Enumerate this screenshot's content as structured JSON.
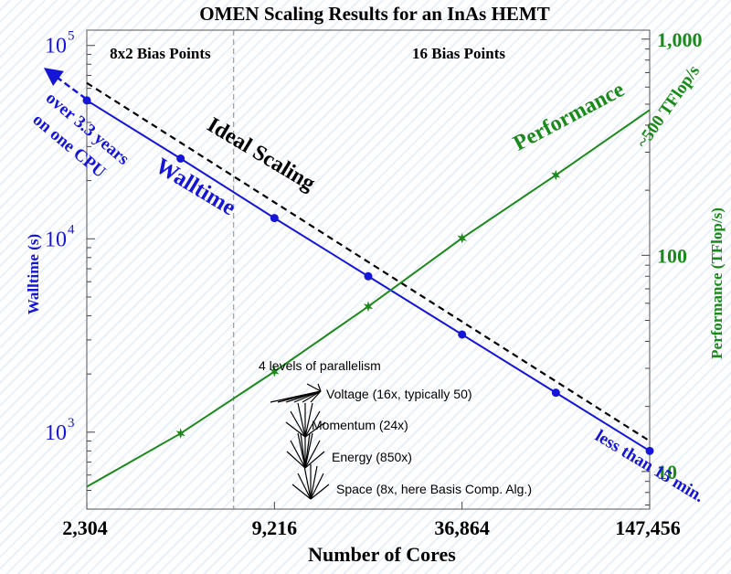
{
  "chart_data": {
    "type": "line",
    "title": "OMEN Scaling Results for an InAs HEMT",
    "xlabel": "Number of Cores",
    "ylabel_left": "Walltime (s)",
    "ylabel_right": "Performance (TFlop/s)",
    "x_scale": "log2",
    "xlim": [
      2304,
      147456
    ],
    "x_ticks": [
      {
        "value": 2304,
        "label": "2,304"
      },
      {
        "value": 9216,
        "label": "9,216"
      },
      {
        "value": 36864,
        "label": "36,864"
      },
      {
        "value": 147456,
        "label": "147,456"
      }
    ],
    "y_left_scale": "log10",
    "y_left_lim": [
      400,
      120000
    ],
    "y_left_ticks": [
      {
        "value": 1000,
        "base": "10",
        "exp": "3"
      },
      {
        "value": 10000,
        "base": "10",
        "exp": "4"
      },
      {
        "value": 100000,
        "base": "10",
        "exp": "5"
      }
    ],
    "y_right_scale": "log10",
    "y_right_lim": [
      6.7,
      1100
    ],
    "y_right_ticks": [
      {
        "value": 10,
        "label": "10"
      },
      {
        "value": 100,
        "label": "100"
      },
      {
        "value": 1000,
        "label": "1,000"
      }
    ],
    "regions": [
      {
        "label": "8x2 Bias Points",
        "x_end": 6820
      },
      {
        "label": "16 Bias Points"
      }
    ],
    "series": [
      {
        "name": "Walltime",
        "axis": "left",
        "color": "#1515d8",
        "marker": "circle",
        "x": [
          2304,
          4608,
          9216,
          18432,
          36864,
          73728,
          147456
        ],
        "y": [
          52000,
          26000,
          12800,
          6400,
          3200,
          1600,
          800
        ]
      },
      {
        "name": "Ideal Scaling",
        "axis": "left",
        "color": "#000000",
        "style": "dashed",
        "x": [
          2304,
          147456
        ],
        "y": [
          64000,
          900
        ]
      },
      {
        "name": "Performance",
        "axis": "right",
        "color": "#1a8a1a",
        "marker": "star",
        "x": [
          2304,
          4608,
          9216,
          18432,
          36864,
          73728,
          147456
        ],
        "y": [
          8.5,
          15,
          29,
          58,
          120,
          235,
          470
        ]
      }
    ],
    "annotations": {
      "walltime_label": "Walltime",
      "ideal_label": "Ideal Scaling",
      "performance_label": "Performance",
      "perf_peak": "~500 TFlop/s",
      "cpu_note_line1": "over 3.3 years",
      "cpu_note_line2": "on one CPU",
      "min_note": "less than 15 min.",
      "parallelism_title": "4 levels of parallelism",
      "levels": [
        "Voltage (16x, typically 50)",
        "Momentum (24x)",
        "Energy (850x)",
        "Space (8x, here Basis Comp. Alg.)"
      ]
    }
  },
  "colors": {
    "blue": "#1515d8",
    "green": "#1a8a1a",
    "black": "#000000",
    "grid": "#9a9a9a"
  }
}
